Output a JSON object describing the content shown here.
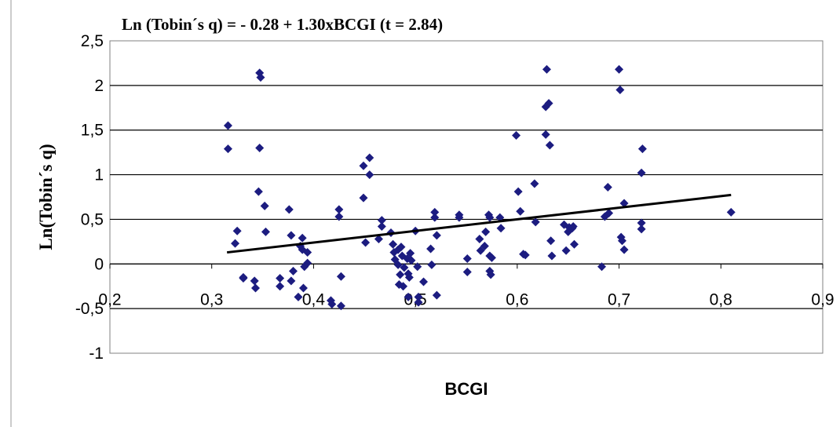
{
  "chart_data": {
    "type": "scatter",
    "title": "Ln (Tobin´s q) = - 0.28 + 1.30xBCGI  (t = 2.84)",
    "xlabel": "BCGI",
    "ylabel": "Ln(Tobin´s q)",
    "xlim": [
      0.2,
      0.9
    ],
    "ylim": [
      -1,
      2.5
    ],
    "x_ticks": [
      "0,2",
      "0,3",
      "0,4",
      "0,5",
      "0,6",
      "0,7",
      "0,8",
      "0,9"
    ],
    "y_ticks": [
      "2,5",
      "2",
      "1,5",
      "1",
      "0,5",
      "0",
      "-0,5",
      "-1"
    ],
    "grid": "horizontal",
    "marker_color": "#1c1c80",
    "trendline": {
      "intercept": -0.28,
      "slope": 1.3,
      "x_range": [
        0.315,
        0.81
      ],
      "color": "#000000"
    },
    "points": [
      [
        0.316,
        1.55
      ],
      [
        0.316,
        1.29
      ],
      [
        0.323,
        0.23
      ],
      [
        0.325,
        0.37
      ],
      [
        0.331,
        -0.15
      ],
      [
        0.331,
        -0.16
      ],
      [
        0.342,
        -0.19
      ],
      [
        0.343,
        -0.27
      ],
      [
        0.347,
        2.14
      ],
      [
        0.348,
        2.09
      ],
      [
        0.347,
        1.3
      ],
      [
        0.346,
        0.81
      ],
      [
        0.352,
        0.65
      ],
      [
        0.353,
        0.36
      ],
      [
        0.367,
        -0.16
      ],
      [
        0.367,
        -0.25
      ],
      [
        0.376,
        0.61
      ],
      [
        0.378,
        0.32
      ],
      [
        0.378,
        -0.19
      ],
      [
        0.38,
        -0.08
      ],
      [
        0.385,
        -0.37
      ],
      [
        0.387,
        0.2
      ],
      [
        0.389,
        0.29
      ],
      [
        0.389,
        0.16
      ],
      [
        0.39,
        -0.27
      ],
      [
        0.391,
        -0.03
      ],
      [
        0.394,
        0.13
      ],
      [
        0.394,
        0.01
      ],
      [
        0.417,
        -0.41
      ],
      [
        0.418,
        -0.45
      ],
      [
        0.425,
        0.61
      ],
      [
        0.425,
        0.53
      ],
      [
        0.427,
        -0.14
      ],
      [
        0.427,
        -0.47
      ],
      [
        0.449,
        1.1
      ],
      [
        0.449,
        0.74
      ],
      [
        0.451,
        0.24
      ],
      [
        0.455,
        1.19
      ],
      [
        0.455,
        1.0
      ],
      [
        0.464,
        0.28
      ],
      [
        0.467,
        0.49
      ],
      [
        0.467,
        0.42
      ],
      [
        0.476,
        0.35
      ],
      [
        0.478,
        0.22
      ],
      [
        0.479,
        0.13
      ],
      [
        0.48,
        0.05
      ],
      [
        0.483,
        0.16
      ],
      [
        0.483,
        -0.01
      ],
      [
        0.484,
        -0.23
      ],
      [
        0.485,
        -0.12
      ],
      [
        0.486,
        0.19
      ],
      [
        0.487,
        0.09
      ],
      [
        0.488,
        -0.25
      ],
      [
        0.489,
        -0.04
      ],
      [
        0.492,
        0.06
      ],
      [
        0.493,
        -0.11
      ],
      [
        0.493,
        -0.37
      ],
      [
        0.494,
        -0.15
      ],
      [
        0.495,
        0.12
      ],
      [
        0.496,
        0.04
      ],
      [
        0.5,
        0.37
      ],
      [
        0.502,
        -0.03
      ],
      [
        0.503,
        -0.37
      ],
      [
        0.503,
        -0.43
      ],
      [
        0.508,
        -0.2
      ],
      [
        0.515,
        0.17
      ],
      [
        0.516,
        -0.01
      ],
      [
        0.519,
        0.58
      ],
      [
        0.519,
        0.52
      ],
      [
        0.521,
        0.32
      ],
      [
        0.521,
        -0.35
      ],
      [
        0.543,
        0.55
      ],
      [
        0.543,
        0.52
      ],
      [
        0.551,
        0.06
      ],
      [
        0.551,
        -0.09
      ],
      [
        0.563,
        0.28
      ],
      [
        0.564,
        0.15
      ],
      [
        0.568,
        0.2
      ],
      [
        0.569,
        0.36
      ],
      [
        0.572,
        0.55
      ],
      [
        0.573,
        0.52
      ],
      [
        0.573,
        0.09
      ],
      [
        0.573,
        -0.08
      ],
      [
        0.574,
        -0.12
      ],
      [
        0.575,
        0.07
      ],
      [
        0.583,
        0.52
      ],
      [
        0.584,
        0.4
      ],
      [
        0.599,
        1.44
      ],
      [
        0.601,
        0.81
      ],
      [
        0.603,
        0.59
      ],
      [
        0.606,
        0.11
      ],
      [
        0.608,
        0.1
      ],
      [
        0.617,
        0.9
      ],
      [
        0.618,
        0.47
      ],
      [
        0.628,
        1.76
      ],
      [
        0.628,
        1.45
      ],
      [
        0.629,
        2.18
      ],
      [
        0.631,
        1.8
      ],
      [
        0.632,
        1.33
      ],
      [
        0.633,
        0.26
      ],
      [
        0.634,
        0.09
      ],
      [
        0.646,
        0.44
      ],
      [
        0.648,
        0.15
      ],
      [
        0.65,
        0.36
      ],
      [
        0.651,
        0.41
      ],
      [
        0.654,
        0.4
      ],
      [
        0.655,
        0.42
      ],
      [
        0.656,
        0.22
      ],
      [
        0.683,
        -0.03
      ],
      [
        0.686,
        0.53
      ],
      [
        0.689,
        0.86
      ],
      [
        0.69,
        0.57
      ],
      [
        0.7,
        2.18
      ],
      [
        0.701,
        1.95
      ],
      [
        0.702,
        0.3
      ],
      [
        0.703,
        0.26
      ],
      [
        0.705,
        0.68
      ],
      [
        0.705,
        0.16
      ],
      [
        0.723,
        1.29
      ],
      [
        0.722,
        1.02
      ],
      [
        0.722,
        0.46
      ],
      [
        0.722,
        0.39
      ],
      [
        0.81,
        0.58
      ]
    ]
  }
}
